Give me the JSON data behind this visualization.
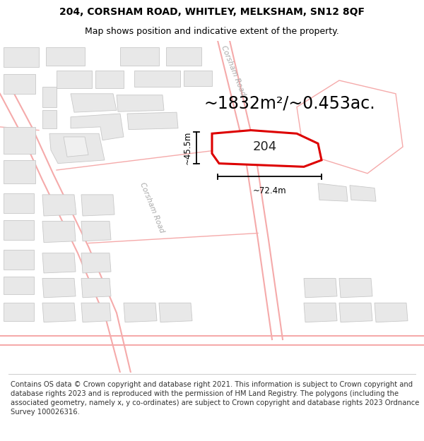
{
  "title_line1": "204, CORSHAM ROAD, WHITLEY, MELKSHAM, SN12 8QF",
  "title_line2": "Map shows position and indicative extent of the property.",
  "area_text": "~1832m²/~0.453ac.",
  "property_label": "204",
  "dim_width": "~72.4m",
  "dim_height": "~45.5m",
  "road_label_top": "Corsham Road",
  "road_label_bottom": "Corsham Road",
  "footer_text": "Contains OS data © Crown copyright and database right 2021. This information is subject to Crown copyright and database rights 2023 and is reproduced with the permission of HM Land Registry. The polygons (including the associated geometry, namely x, y co-ordinates) are subject to Crown copyright and database rights 2023 Ordnance Survey 100026316.",
  "map_bg": "#ffffff",
  "building_fill": "#e8e8e8",
  "building_edge": "#c8c8c8",
  "road_color": "#f5aaaa",
  "property_edge": "#dd0000",
  "nearby_poly_edge": "#f5aaaa",
  "dim_color": "#000000",
  "text_color": "#000000",
  "road_label_color": "#aaaaaa",
  "title_fontsize": 10,
  "subtitle_fontsize": 9,
  "area_fontsize": 17,
  "label_fontsize": 13,
  "footer_fontsize": 7.2
}
